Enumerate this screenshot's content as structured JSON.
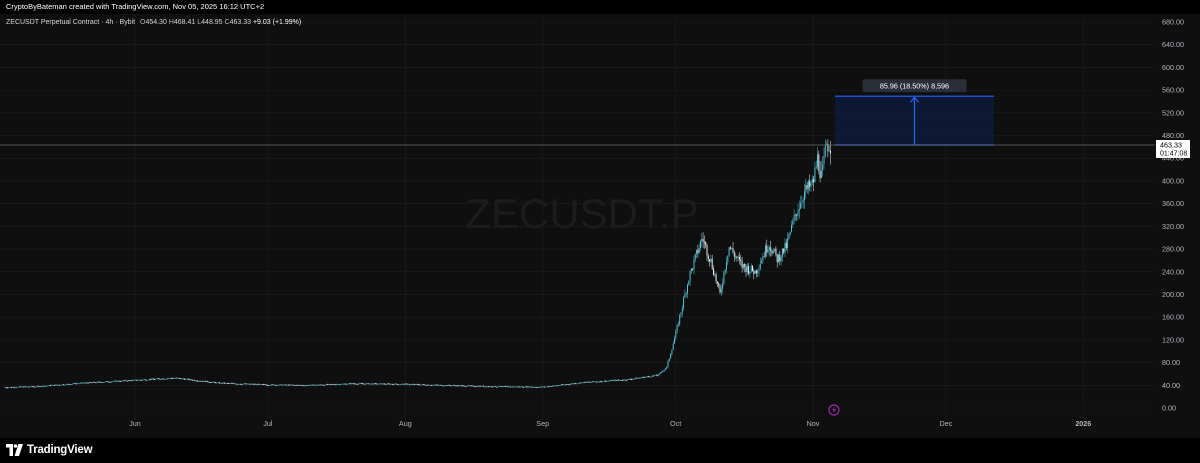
{
  "header": {
    "credit": "CryptoByBateman created with TradingView.com, Nov 05, 2025 16:12 UTC+2"
  },
  "legend": {
    "symbol_desc": "ZECUSDT Perpetual Contract · 4h · Bybit",
    "open_label": "O",
    "open": "454.30",
    "high_label": "H",
    "high": "468.41",
    "low_label": "L",
    "low": "448.95",
    "close_label": "C",
    "close": "463.33",
    "change": "+9.03 (+1.99%)"
  },
  "watermark": "ZECUSDT.P",
  "price_label": {
    "price": "463.33",
    "countdown": "01:47:08"
  },
  "measure_tool": {
    "label": "85.96 (18.50%) 8,596",
    "from": 463.33,
    "to": 549.29
  },
  "footer": {
    "logo_text": "TradingView"
  },
  "icons": {
    "logo": "tradingview-logo-icon",
    "event": "lightning-event-icon",
    "arrow": "up-arrow-icon"
  },
  "colors": {
    "background": "#0f0f0f",
    "candle_up": "#4fc3d9",
    "candle_down": "#e6f2f5",
    "measure_fill": "#0d1a3a",
    "measure_border": "#2962ff",
    "grid": "#1f1f1f",
    "event": "#9c27b0"
  },
  "chart_data": {
    "type": "line",
    "title": "",
    "xlabel": "",
    "ylabel": "",
    "x_ticks": [
      "Jun",
      "Jul",
      "Aug",
      "Sep",
      "Oct",
      "Nov",
      "Dec",
      "2026"
    ],
    "y_ticks": [
      "0.00",
      "40.00",
      "80.00",
      "120.00",
      "160.00",
      "200.00",
      "240.00",
      "280.00",
      "320.00",
      "360.00",
      "400.00",
      "440.00",
      "480.00",
      "520.00",
      "560.00",
      "600.00",
      "640.00",
      "680.00"
    ],
    "ylim": [
      0,
      680
    ],
    "last_price": 463.33,
    "series": [
      {
        "values_x": [
          "May 01",
          "May 10",
          "May 20",
          "Jun 01",
          "Jun 10",
          "Jun 20",
          "Jul 01",
          "Jul 10",
          "Jul 20",
          "Aug 01",
          "Aug 10",
          "Aug 20",
          "Sep 01",
          "Sep 10",
          "Sep 20",
          "Sep 27",
          "Sep 29",
          "Oct 01",
          "Oct 04",
          "Oct 07",
          "Oct 09",
          "Oct 11",
          "Oct 13",
          "Oct 16",
          "Oct 19",
          "Oct 22",
          "Oct 24",
          "Oct 26",
          "Oct 28",
          "Oct 30",
          "Nov 01",
          "Nov 02",
          "Nov 03",
          "Nov 04",
          "Nov 05"
        ],
        "values": [
          36,
          38,
          44,
          49,
          53,
          44,
          41,
          40,
          43,
          42,
          40,
          38,
          37,
          45,
          50,
          58,
          72,
          130,
          230,
          300,
          258,
          200,
          285,
          250,
          240,
          290,
          262,
          285,
          340,
          380,
          395,
          440,
          405,
          465,
          463
        ]
      }
    ]
  }
}
